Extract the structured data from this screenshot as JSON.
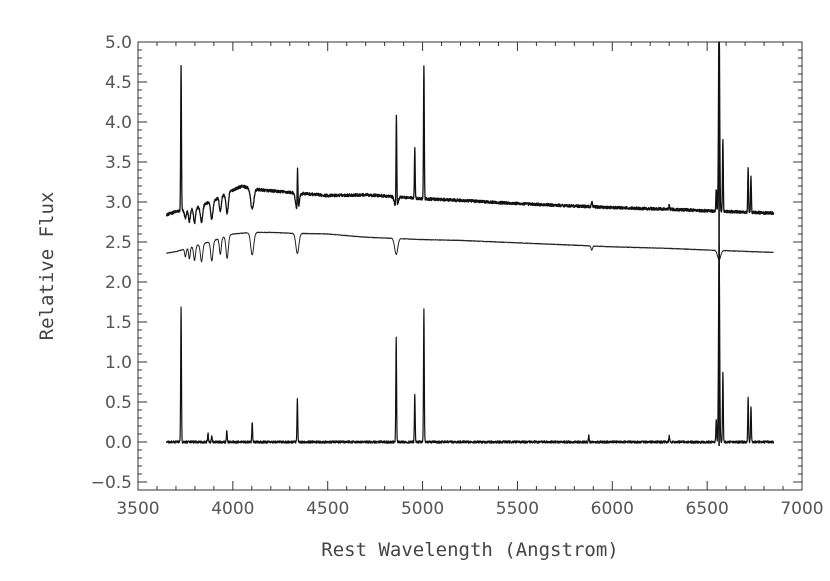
{
  "chart_data": {
    "type": "line",
    "title": "",
    "xlabel": "Rest Wavelength (Angstrom)",
    "ylabel": "Relative Flux",
    "xlim": [
      3500,
      7000
    ],
    "ylim": [
      -0.6,
      5.0
    ],
    "x_ticks": [
      3500,
      4000,
      4500,
      5000,
      5500,
      6000,
      6500,
      7000
    ],
    "y_ticks": [
      -0.5,
      0.0,
      0.5,
      1.0,
      1.5,
      2.0,
      2.5,
      3.0,
      3.5,
      4.0,
      4.5,
      5.0
    ],
    "x_tick_labels": [
      "3500",
      "4000",
      "4500",
      "5000",
      "5500",
      "6000",
      "6500",
      "7000"
    ],
    "y_tick_labels": [
      "−0.5",
      "0.0",
      "0.5",
      "1.0",
      "1.5",
      "2.0",
      "2.5",
      "3.0",
      "3.5",
      "4.0",
      "4.5",
      "5.0"
    ],
    "grid": false,
    "legend": "none",
    "series": [
      {
        "color": "#111111",
        "stroke": 1.3,
        "noise": 0.018,
        "baseline": [
          [
            3650,
            2.84
          ],
          [
            3700,
            2.88
          ],
          [
            3800,
            2.92
          ],
          [
            3900,
            3.02
          ],
          [
            4000,
            3.15
          ],
          [
            4050,
            3.2
          ],
          [
            4100,
            3.16
          ],
          [
            4200,
            3.14
          ],
          [
            4300,
            3.12
          ],
          [
            4500,
            3.08
          ],
          [
            4700,
            3.09
          ],
          [
            4900,
            3.06
          ],
          [
            5000,
            3.04
          ],
          [
            5200,
            3.02
          ],
          [
            5500,
            2.98
          ],
          [
            6000,
            2.93
          ],
          [
            6300,
            2.91
          ],
          [
            6500,
            2.89
          ],
          [
            6850,
            2.86
          ]
        ],
        "features": [
          [
            3727,
            1.8,
            2
          ],
          [
            3750,
            -0.1,
            5
          ],
          [
            3771,
            -0.15,
            5
          ],
          [
            3798,
            -0.18,
            5
          ],
          [
            3835,
            -0.2,
            6
          ],
          [
            3889,
            -0.22,
            6
          ],
          [
            3934,
            -0.18,
            5
          ],
          [
            3970,
            -0.25,
            6
          ],
          [
            4102,
            -0.25,
            8
          ],
          [
            4340,
            -0.25,
            8
          ],
          [
            4341,
            0.55,
            2
          ],
          [
            4861,
            -0.15,
            8
          ],
          [
            4862,
            1.15,
            2
          ],
          [
            4959,
            0.62,
            2
          ],
          [
            5007,
            1.68,
            2
          ],
          [
            5892,
            0.06,
            3
          ],
          [
            6300,
            0.06,
            2
          ],
          [
            6548,
            0.28,
            2
          ],
          [
            6563,
            2.5,
            3
          ],
          [
            6583,
            0.9,
            2
          ],
          [
            6716,
            0.55,
            2
          ],
          [
            6731,
            0.45,
            2
          ]
        ]
      },
      {
        "color": "#222222",
        "stroke": 1.0,
        "noise": 0.004,
        "baseline": [
          [
            3650,
            2.36
          ],
          [
            3700,
            2.38
          ],
          [
            3800,
            2.45
          ],
          [
            3900,
            2.52
          ],
          [
            4000,
            2.6
          ],
          [
            4100,
            2.62
          ],
          [
            4200,
            2.62
          ],
          [
            4300,
            2.61
          ],
          [
            4500,
            2.6
          ],
          [
            4700,
            2.56
          ],
          [
            4900,
            2.54
          ],
          [
            5000,
            2.53
          ],
          [
            5200,
            2.52
          ],
          [
            5500,
            2.49
          ],
          [
            6000,
            2.44
          ],
          [
            6300,
            2.42
          ],
          [
            6500,
            2.4
          ],
          [
            6850,
            2.37
          ]
        ],
        "features": [
          [
            3750,
            -0.1,
            4
          ],
          [
            3771,
            -0.14,
            4
          ],
          [
            3798,
            -0.18,
            5
          ],
          [
            3835,
            -0.22,
            6
          ],
          [
            3889,
            -0.25,
            6
          ],
          [
            3934,
            -0.2,
            5
          ],
          [
            3970,
            -0.28,
            6
          ],
          [
            4102,
            -0.28,
            8
          ],
          [
            4340,
            -0.25,
            8
          ],
          [
            4861,
            -0.2,
            8
          ],
          [
            5892,
            -0.05,
            4
          ],
          [
            6563,
            -0.12,
            8
          ]
        ]
      },
      {
        "color": "#111111",
        "stroke": 1.2,
        "noise": 0.015,
        "baseline": [
          [
            3650,
            0.0
          ],
          [
            6850,
            0.0
          ]
        ],
        "features": [
          [
            3727,
            1.7,
            2
          ],
          [
            3869,
            0.12,
            2
          ],
          [
            3889,
            0.08,
            2
          ],
          [
            3968,
            0.15,
            2
          ],
          [
            4102,
            0.25,
            2
          ],
          [
            4340,
            0.55,
            2
          ],
          [
            4861,
            1.3,
            2
          ],
          [
            4959,
            0.6,
            2
          ],
          [
            5007,
            1.65,
            2
          ],
          [
            5876,
            0.08,
            2
          ],
          [
            6300,
            0.08,
            2
          ],
          [
            6548,
            0.28,
            2
          ],
          [
            6563,
            2.45,
            3
          ],
          [
            6583,
            0.88,
            2
          ],
          [
            6716,
            0.55,
            2
          ],
          [
            6731,
            0.45,
            2
          ]
        ]
      }
    ],
    "vertical_lines": [
      {
        "x": 6563,
        "y_from": -0.05,
        "y_to": 5.0,
        "color": "#111111"
      }
    ]
  }
}
